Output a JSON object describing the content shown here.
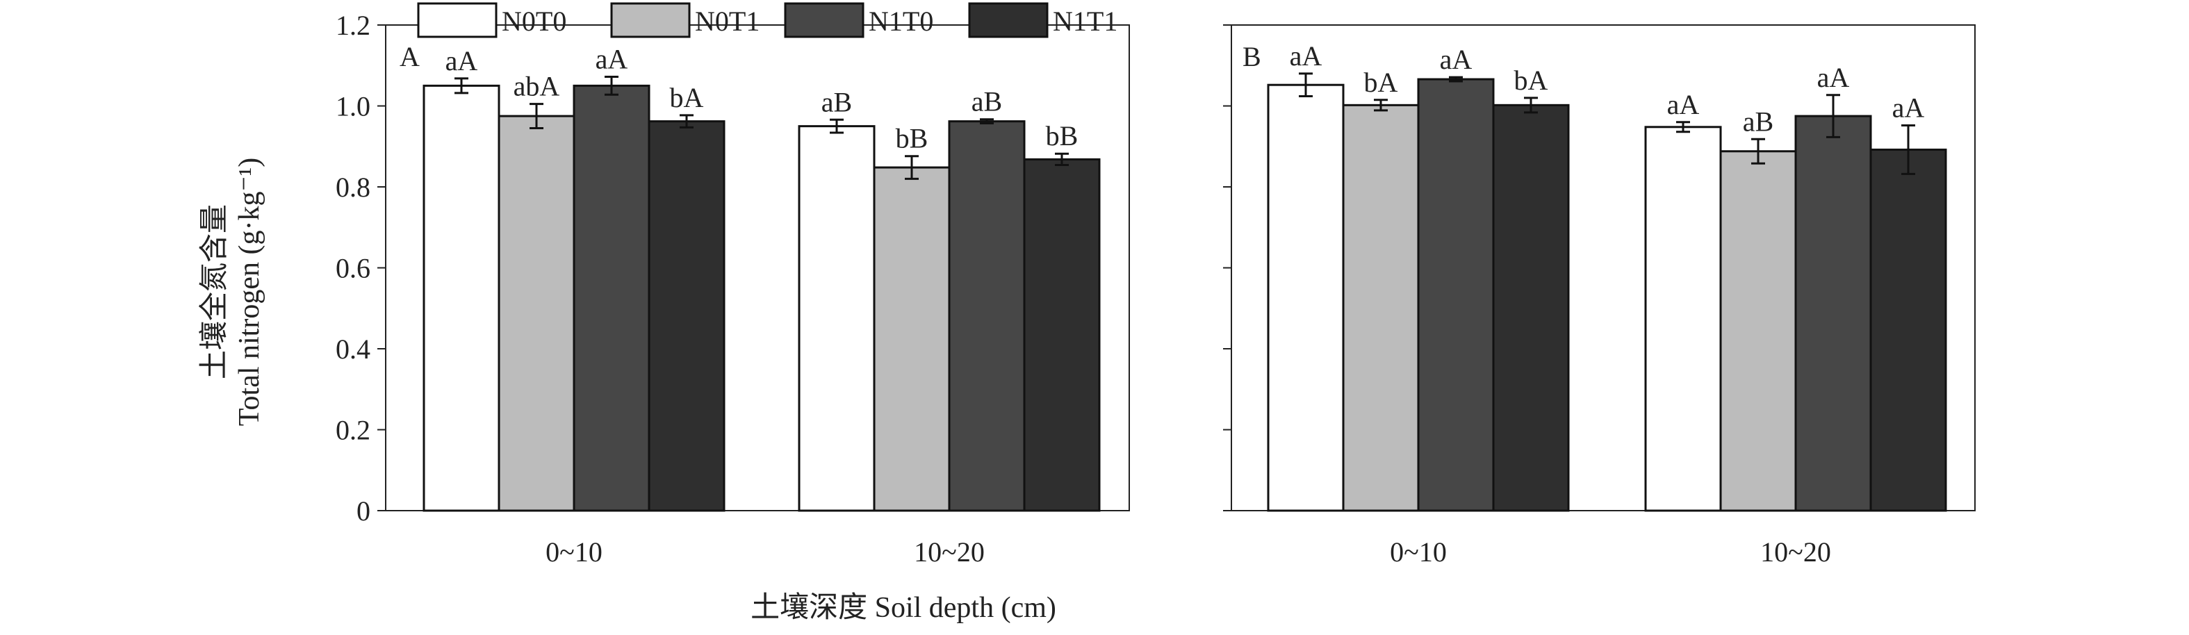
{
  "chart_data": {
    "type": "bar",
    "ylabel_cn": "土壤全氮含量",
    "ylabel_en": "Total nitrogen (g·kg⁻¹)",
    "xlabel": "土壤深度 Soil depth (cm)",
    "ylim": [
      0,
      1.2
    ],
    "yticks": [
      "0",
      "0.2",
      "0.4",
      "0.6",
      "0.8",
      "1.0",
      "1.2"
    ],
    "legend_position": "top",
    "series_names": [
      "N0T0",
      "N0T1",
      "N1T0",
      "N1T1"
    ],
    "series_colors": [
      "#ffffff",
      "#bcbcbc",
      "#474747",
      "#2f2f2f"
    ],
    "panels": [
      {
        "letter": "A",
        "categories": [
          "0~10",
          "10~20"
        ],
        "values": [
          [
            1.05,
            0.975,
            1.05,
            0.962
          ],
          [
            0.95,
            0.848,
            0.962,
            0.868
          ]
        ],
        "errors": [
          [
            0.018,
            0.03,
            0.022,
            0.015
          ],
          [
            0.016,
            0.028,
            0.005,
            0.014
          ]
        ],
        "labels": [
          [
            "aA",
            "abA",
            "aA",
            "bA"
          ],
          [
            "aB",
            "bB",
            "aB",
            "bB"
          ]
        ]
      },
      {
        "letter": "B",
        "categories": [
          "0~10",
          "10~20"
        ],
        "values": [
          [
            1.052,
            1.002,
            1.066,
            1.002
          ],
          [
            0.948,
            0.888,
            0.975,
            0.892
          ]
        ],
        "errors": [
          [
            0.028,
            0.013,
            0.005,
            0.018
          ],
          [
            0.012,
            0.03,
            0.052,
            0.06
          ]
        ],
        "labels": [
          [
            "aA",
            "bA",
            "aA",
            "bA"
          ],
          [
            "aA",
            "aB",
            "aA",
            "aA"
          ]
        ]
      }
    ]
  }
}
